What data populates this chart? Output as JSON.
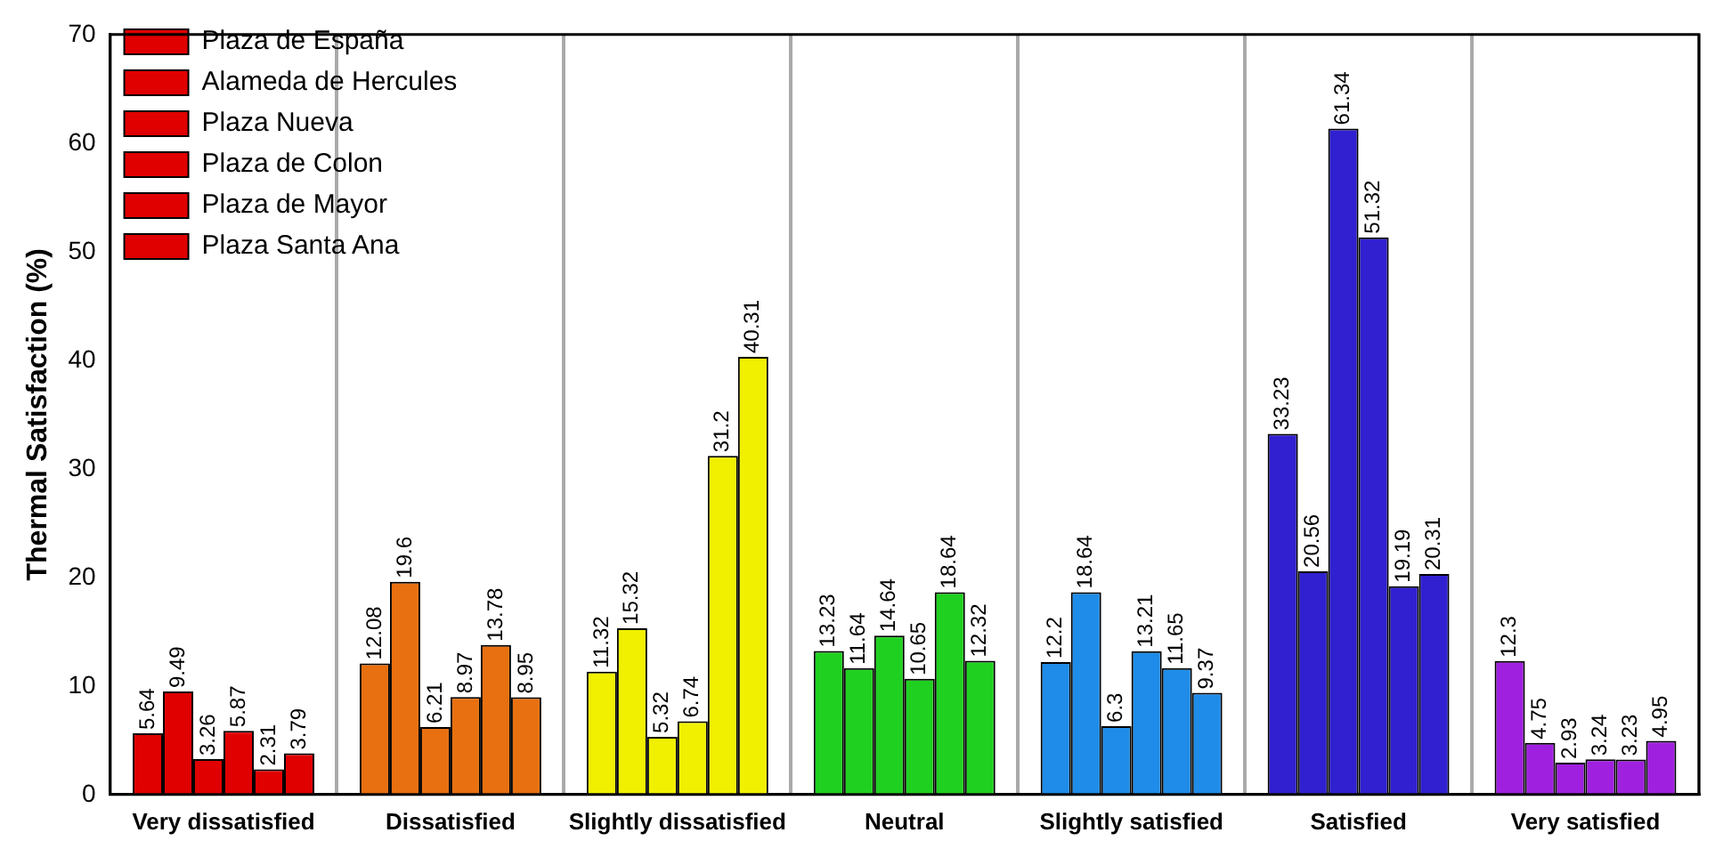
{
  "chart_data": {
    "type": "bar",
    "ylabel": "Thermal Satisfaction (%)",
    "categories": [
      "Very dissatisfied",
      "Dissatisfied",
      "Slightly dissatisfied",
      "Neutral",
      "Slightly satisfied",
      "Satisfied",
      "Very satisfied"
    ],
    "series": [
      {
        "name": "Plaza de España",
        "colors": [
          "#e00000",
          "#e87010",
          "#f0f000",
          "#20d020",
          "#1e8ce8",
          "#3020d0",
          "#a020e0"
        ],
        "values": [
          5.64,
          12.08,
          11.32,
          13.23,
          12.2,
          33.23,
          12.3
        ]
      },
      {
        "name": "Alameda de Hercules",
        "colors": [
          "#e00000",
          "#e87010",
          "#f0f000",
          "#20d020",
          "#1e8ce8",
          "#3020d0",
          "#a020e0"
        ],
        "values": [
          9.49,
          19.6,
          15.32,
          11.64,
          18.64,
          20.56,
          4.75
        ]
      },
      {
        "name": "Plaza Nueva",
        "colors": [
          "#e00000",
          "#e87010",
          "#f0f000",
          "#20d020",
          "#1e8ce8",
          "#3020d0",
          "#a020e0"
        ],
        "values": [
          3.26,
          6.21,
          5.32,
          14.64,
          6.3,
          61.34,
          2.93
        ]
      },
      {
        "name": "Plaza de Colon",
        "colors": [
          "#e00000",
          "#e87010",
          "#f0f000",
          "#20d020",
          "#1e8ce8",
          "#3020d0",
          "#a020e0"
        ],
        "values": [
          5.87,
          8.97,
          6.74,
          10.65,
          13.21,
          51.32,
          3.24
        ]
      },
      {
        "name": "Plaza de Mayor",
        "colors": [
          "#e00000",
          "#e87010",
          "#f0f000",
          "#20d020",
          "#1e8ce8",
          "#3020d0",
          "#a020e0"
        ],
        "values": [
          2.31,
          13.78,
          31.2,
          18.64,
          11.65,
          19.19,
          3.23
        ]
      },
      {
        "name": "Plaza Santa Ana",
        "colors": [
          "#e00000",
          "#e87010",
          "#f0f000",
          "#20d020",
          "#1e8ce8",
          "#3020d0",
          "#a020e0"
        ],
        "values": [
          3.79,
          8.95,
          40.31,
          12.32,
          9.37,
          20.31,
          4.95
        ]
      }
    ],
    "ylim": [
      0,
      70
    ],
    "yticks": [
      0,
      10,
      20,
      30,
      40,
      50,
      60,
      70
    ],
    "grid": "x",
    "legend": "top left",
    "data_labels": true
  }
}
